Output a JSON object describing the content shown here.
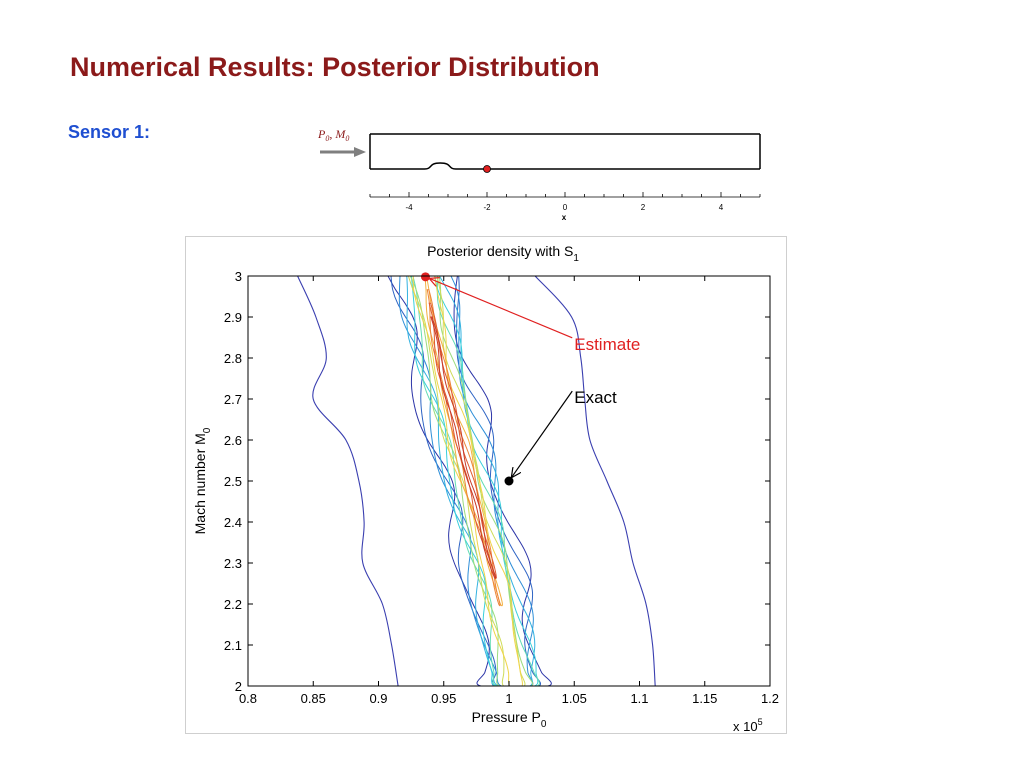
{
  "slide": {
    "title": "Numerical Results: Posterior Distribution",
    "sensor_label": "Sensor 1:"
  },
  "schematic": {
    "inflow_label": "P0, M0",
    "inflow_label_main": [
      "P",
      "M"
    ],
    "inflow_label_sub": "0",
    "inflow_label_sep": ",",
    "axis_label": "x",
    "ticks": [
      -4,
      -2,
      0,
      2,
      4
    ],
    "xlim": [
      -5,
      5
    ],
    "sensor_x": -2,
    "bump_range": [
      -3.6,
      -2.8
    ],
    "colors": {
      "channel": "#000000",
      "arrow": "#7f7f7f",
      "sensor": "#e02020",
      "label": "#8b1a1a"
    }
  },
  "chart_data": {
    "type": "contour",
    "title": "Posterior density with S",
    "title_subscript": "1",
    "xlabel": "Pressure P",
    "xlabel_subscript": "0",
    "ylabel": "Mach number M",
    "ylabel_subscript": "0",
    "x_multiplier": "x 10",
    "x_multiplier_exponent": "5",
    "xlim": [
      0.8,
      1.2
    ],
    "ylim": [
      2,
      3
    ],
    "xticks": [
      0.8,
      0.85,
      0.9,
      0.95,
      1,
      1.05,
      1.1,
      1.15,
      1.2
    ],
    "yticks": [
      2,
      2.1,
      2.2,
      2.3,
      2.4,
      2.5,
      2.6,
      2.7,
      2.8,
      2.9,
      3
    ],
    "grid": false,
    "ridge": [
      {
        "y": 3.0,
        "p": 0.935
      },
      {
        "y": 2.75,
        "p": 0.95
      },
      {
        "y": 2.5,
        "p": 0.97
      },
      {
        "y": 2.25,
        "p": 0.99
      },
      {
        "y": 2.0,
        "p": 1.005
      }
    ],
    "contour_levels": [
      {
        "half_width": 0.029,
        "color": "#2c35a8"
      },
      {
        "half_width": 0.026,
        "color": "#2e64c4"
      },
      {
        "half_width": 0.023,
        "color": "#2f8fd8"
      },
      {
        "half_width": 0.0205,
        "color": "#34b2e0"
      },
      {
        "half_width": 0.018,
        "color": "#39cfdc"
      },
      {
        "half_width": 0.0155,
        "color": "#63dcb4"
      },
      {
        "half_width": 0.013,
        "color": "#9bdc7e"
      },
      {
        "half_width": 0.011,
        "color": "#cfdc58"
      },
      {
        "half_width": 0.009,
        "color": "#f0d44a"
      },
      {
        "half_width": 0.0072,
        "color": "#f3b040"
      },
      {
        "half_width": 0.0056,
        "color": "#ec8438"
      },
      {
        "half_width": 0.004,
        "color": "#df5a32"
      },
      {
        "half_width": 0.0025,
        "color": "#c83a2a"
      }
    ],
    "outer_contour": {
      "color": "#3a3fb0",
      "left": [
        {
          "y": 3.0,
          "p": 0.838
        },
        {
          "y": 2.9,
          "p": 0.852
        },
        {
          "y": 2.8,
          "p": 0.86
        },
        {
          "y": 2.7,
          "p": 0.85
        },
        {
          "y": 2.6,
          "p": 0.875
        },
        {
          "y": 2.5,
          "p": 0.885
        },
        {
          "y": 2.4,
          "p": 0.889
        },
        {
          "y": 2.3,
          "p": 0.888
        },
        {
          "y": 2.2,
          "p": 0.903
        },
        {
          "y": 2.1,
          "p": 0.91
        },
        {
          "y": 2.0,
          "p": 0.915
        }
      ],
      "right": [
        {
          "y": 3.0,
          "p": 1.02
        },
        {
          "y": 2.9,
          "p": 1.048
        },
        {
          "y": 2.8,
          "p": 1.055
        },
        {
          "y": 2.7,
          "p": 1.058
        },
        {
          "y": 2.6,
          "p": 1.062
        },
        {
          "y": 2.5,
          "p": 1.075
        },
        {
          "y": 2.4,
          "p": 1.088
        },
        {
          "y": 2.3,
          "p": 1.095
        },
        {
          "y": 2.2,
          "p": 1.105
        },
        {
          "y": 2.1,
          "p": 1.11
        },
        {
          "y": 2.0,
          "p": 1.112
        }
      ]
    },
    "points": [
      {
        "label": "Estimate",
        "p": 0.936,
        "m": 2.998,
        "color": "#e02020",
        "label_p": 1.05,
        "label_m": 2.82
      },
      {
        "label": "Exact",
        "p": 1.0,
        "m": 2.5,
        "color": "#000000",
        "label_p": 1.05,
        "label_m": 2.69
      }
    ]
  }
}
